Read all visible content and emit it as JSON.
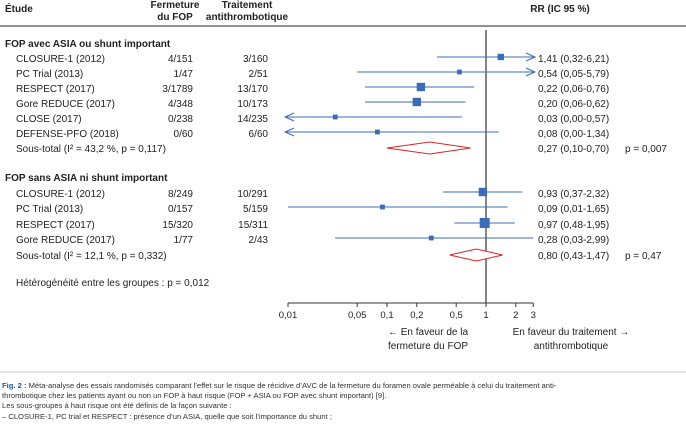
{
  "chart_data": {
    "type": "forest",
    "headers": {
      "study": "Étude",
      "fop": [
        "Fermeture",
        "du FOP"
      ],
      "treatment": [
        "Traitement",
        "antithrombotique"
      ],
      "rr": "RR (IC 95 %)"
    },
    "x_scale": "log",
    "xlim": [
      0.01,
      3
    ],
    "ticks": [
      "0,01",
      "0,05",
      "0,1",
      "0,2",
      "0,5",
      "1",
      "2",
      "3"
    ],
    "tick_values": [
      0.01,
      0.05,
      0.1,
      0.2,
      0.5,
      1,
      2,
      3
    ],
    "favor_left": [
      "← En faveur de la",
      "fermeture du FOP"
    ],
    "favor_right": [
      "En faveur du traitement →",
      "antithrombotique"
    ],
    "groups": [
      {
        "title": "FOP avec ASIA ou shunt important",
        "studies": [
          {
            "name": "CLOSURE-1 (2012)",
            "fop": "4/151",
            "treat": "3/160",
            "rr": 1.41,
            "lo": 0.32,
            "hi": 6.21,
            "ci_text": "1,41 (0,32-6,21)",
            "weight": 2
          },
          {
            "name": "PC Trial (2013)",
            "fop": "1/47",
            "treat": "2/51",
            "rr": 0.54,
            "lo": 0.05,
            "hi": 5.79,
            "ci_text": "0,54 (0,05-5,79)",
            "weight": 1
          },
          {
            "name": "RESPECT (2017)",
            "fop": "3/1789",
            "treat": "13/170",
            "rr": 0.22,
            "lo": 0.06,
            "hi": 0.76,
            "ci_text": "0,22 (0,06-0,76)",
            "weight": 3
          },
          {
            "name": "Gore REDUCE (2017)",
            "fop": "4/348",
            "treat": "10/173",
            "rr": 0.2,
            "lo": 0.06,
            "hi": 0.62,
            "ci_text": "0,20 (0,06-0,62)",
            "weight": 3
          },
          {
            "name": "CLOSE (2017)",
            "fop": "0/238",
            "treat": "14/235",
            "rr": 0.03,
            "lo": 0.0,
            "hi": 0.57,
            "ci_text": "0,03 (0,00-0,57)",
            "weight": 1
          },
          {
            "name": "DEFENSE-PFO (2018)",
            "fop": "0/60",
            "treat": "6/60",
            "rr": 0.08,
            "lo": 0.0,
            "hi": 1.34,
            "ci_text": "0,08 (0,00-1,34)",
            "weight": 1
          }
        ],
        "subtotal": {
          "label": "Sous-total (I² = 43,2 %, p = 0,117)",
          "rr": 0.27,
          "lo": 0.1,
          "hi": 0.7,
          "ci_text": "0,27 (0,10-0,70)",
          "p_text": "p = 0,007"
        }
      },
      {
        "title": "FOP sans ASIA ni shunt important",
        "studies": [
          {
            "name": "CLOSURE-1 (2012)",
            "fop": "8/249",
            "treat": "10/291",
            "rr": 0.93,
            "lo": 0.37,
            "hi": 2.32,
            "ci_text": "0,93 (0,37-2,32)",
            "weight": 3
          },
          {
            "name": "PC Trial (2013)",
            "fop": "0/157",
            "treat": "5/159",
            "rr": 0.09,
            "lo": 0.01,
            "hi": 1.65,
            "ci_text": "0,09 (0,01-1,65)",
            "weight": 1
          },
          {
            "name": "RESPECT (2017)",
            "fop": "15/320",
            "treat": "15/311",
            "rr": 0.97,
            "lo": 0.48,
            "hi": 1.95,
            "ci_text": "0,97 (0,48-1,95)",
            "weight": 4
          },
          {
            "name": "Gore REDUCE (2017)",
            "fop": "1/77",
            "treat": "2/43",
            "rr": 0.28,
            "lo": 0.03,
            "hi": 2.99,
            "ci_text": "0,28 (0,03-2,99)",
            "weight": 1
          }
        ],
        "subtotal": {
          "label": "Sous-total (I² = 12,1 %, p = 0,332)",
          "rr": 0.8,
          "lo": 0.43,
          "hi": 1.47,
          "ci_text": "0,80 (0,43-1,47)",
          "p_text": "p = 0,47"
        }
      }
    ],
    "heterogeneity": "Hétérogénéité entre les groupes : p = 0,012",
    "colors": {
      "study": "#3b6cb5",
      "subtotal": "#d9252a"
    }
  },
  "caption": {
    "label": "Fig. 2 :",
    "lines": [
      " Méta-analyse des essais randomisés comparant l’effet sur le risque de récidive d’AVC de la fermeture du foramen ovale perméable à celui du traitement anti-",
      "thrombotique chez les patients ayant ou non un FOP à haut risque (FOP + ASIA ou FOP avec shunt important) [9].",
      "Les sous-groupes à haut risque ont été définis de la façon suivante :",
      "– CLOSURE-1, PC trial et RESPECT : présence d’un ASIA, quelle que soit l’importance du shunt ;"
    ]
  }
}
